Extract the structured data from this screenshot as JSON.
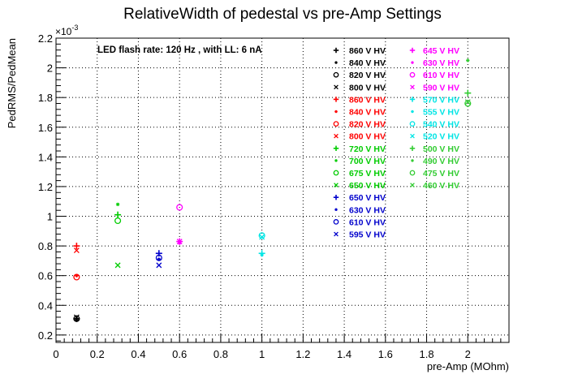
{
  "chart_data": {
    "type": "scatter",
    "title": "RelativeWidth of pedestal vs pre-Amp Settings",
    "xlabel": "pre-Amp (MOhm)",
    "ylabel": "PedRMS/PedMean",
    "exponent_label": "×10",
    "exponent_power": "-3",
    "xlim": [
      0,
      2.2
    ],
    "ylim": [
      0.15,
      2.2
    ],
    "x_ticks": [
      0,
      0.2,
      0.4,
      0.6,
      0.8,
      1,
      1.2,
      1.4,
      1.6,
      1.8,
      2
    ],
    "x_tick_labels": [
      "0",
      "0.2",
      "0.4",
      "0.6",
      "0.8",
      "1",
      "1.2",
      "1.4",
      "1.6",
      "1.8",
      "2"
    ],
    "y_ticks": [
      0.2,
      0.4,
      0.6,
      0.8,
      1,
      1.2,
      1.4,
      1.6,
      1.8,
      2,
      2.2
    ],
    "y_tick_labels": [
      "0.2",
      "0.4",
      "0.6",
      "0.8",
      "1",
      "1.2",
      "1.4",
      "1.6",
      "1.8",
      "2",
      "2.2"
    ],
    "grid": true,
    "legend_position": "top-right",
    "annotation": "LED flash rate: 120 Hz , with LL: 6 nA",
    "series": [
      {
        "name": "860 V HV",
        "color": "#000000",
        "marker": "plus",
        "points": [
          [
            0.1,
            0.31
          ]
        ]
      },
      {
        "name": "840 V HV",
        "color": "#000000",
        "marker": "star",
        "points": [
          [
            0.1,
            0.3
          ]
        ]
      },
      {
        "name": "820 V HV",
        "color": "#000000",
        "marker": "circle",
        "points": [
          [
            0.1,
            0.31
          ]
        ]
      },
      {
        "name": "800 V HV",
        "color": "#000000",
        "marker": "cross",
        "points": [
          [
            0.1,
            0.32
          ]
        ]
      },
      {
        "name": "860 V HV",
        "color": "#ff0000",
        "marker": "plus",
        "points": [
          [
            0.1,
            0.8
          ]
        ]
      },
      {
        "name": "840 V HV",
        "color": "#ff0000",
        "marker": "star",
        "points": [
          [
            0.1,
            0.6
          ]
        ]
      },
      {
        "name": "820 V HV",
        "color": "#ff0000",
        "marker": "circle",
        "points": [
          [
            0.1,
            0.59
          ]
        ]
      },
      {
        "name": "800 V HV",
        "color": "#ff0000",
        "marker": "cross",
        "points": [
          [
            0.1,
            0.77
          ]
        ]
      },
      {
        "name": "720 V HV",
        "color": "#00cc00",
        "marker": "plus",
        "points": [
          [
            0.3,
            1.01
          ]
        ]
      },
      {
        "name": "700 V HV",
        "color": "#00cc00",
        "marker": "star",
        "points": [
          [
            0.3,
            1.08
          ]
        ]
      },
      {
        "name": "675 V HV",
        "color": "#00cc00",
        "marker": "circle",
        "points": [
          [
            0.3,
            0.97
          ]
        ]
      },
      {
        "name": "650 V HV",
        "color": "#00cc00",
        "marker": "cross",
        "points": [
          [
            0.3,
            0.67
          ]
        ]
      },
      {
        "name": "650 V HV",
        "color": "#0000cc",
        "marker": "plus",
        "points": [
          [
            0.5,
            0.75
          ]
        ]
      },
      {
        "name": "630 V HV",
        "color": "#0000cc",
        "marker": "star",
        "points": [
          [
            0.5,
            0.71
          ]
        ]
      },
      {
        "name": "610 V HV",
        "color": "#0000cc",
        "marker": "circle",
        "points": [
          [
            0.5,
            0.72
          ]
        ]
      },
      {
        "name": "595 V HV",
        "color": "#0000cc",
        "marker": "cross",
        "points": [
          [
            0.5,
            0.67
          ]
        ]
      },
      {
        "name": "645 V HV",
        "color": "#ff00ff",
        "marker": "plus",
        "points": [
          [
            0.6,
            0.83
          ]
        ]
      },
      {
        "name": "630 V HV",
        "color": "#ff00ff",
        "marker": "star",
        "points": [
          [
            0.6,
            0.82
          ]
        ]
      },
      {
        "name": "610 V HV",
        "color": "#ff00ff",
        "marker": "circle",
        "points": [
          [
            0.6,
            1.06
          ]
        ]
      },
      {
        "name": "590 V HV",
        "color": "#ff00ff",
        "marker": "cross",
        "points": [
          [
            0.6,
            0.83
          ]
        ]
      },
      {
        "name": "570 V HV",
        "color": "#00e5e5",
        "marker": "plus",
        "points": [
          [
            1,
            0.75
          ]
        ]
      },
      {
        "name": "555 V HV",
        "color": "#00e5e5",
        "marker": "star",
        "points": [
          [
            1,
            0.74
          ]
        ]
      },
      {
        "name": "540 V HV",
        "color": "#00e5e5",
        "marker": "circle",
        "points": [
          [
            1,
            0.87
          ]
        ]
      },
      {
        "name": "520 V HV",
        "color": "#00e5e5",
        "marker": "cross",
        "points": [
          [
            1,
            0.86
          ]
        ]
      },
      {
        "name": "500 V HV",
        "color": "#33cc33",
        "marker": "plus",
        "points": [
          [
            2,
            1.83
          ]
        ]
      },
      {
        "name": "490 V HV",
        "color": "#33cc33",
        "marker": "star",
        "points": [
          [
            2,
            2.05
          ]
        ]
      },
      {
        "name": "475 V HV",
        "color": "#33cc33",
        "marker": "circle",
        "points": [
          [
            2,
            1.76
          ]
        ]
      },
      {
        "name": "460 V HV",
        "color": "#33cc33",
        "marker": "cross",
        "points": [
          [
            2,
            1.77
          ]
        ]
      }
    ]
  }
}
